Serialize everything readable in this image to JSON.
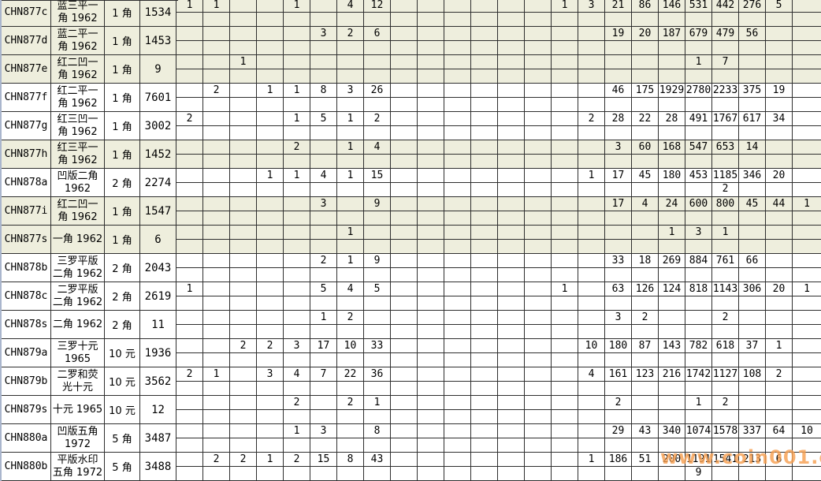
{
  "watermark": "www.coin001.com",
  "grid": {
    "num_columns": 24
  },
  "rows": [
    {
      "code": "CHN877c",
      "desc": "蓝三平一\n角 1962",
      "denom": "1 角",
      "count": "1534",
      "bg": "beige",
      "cells": {
        "1": "1",
        "2": "1",
        "5": "1",
        "7": "4",
        "8": "12",
        "15": "1",
        "16": "3",
        "17": "21",
        "18": "86",
        "19": "146",
        "20": "531",
        "21": "442",
        "22": "276",
        "23": "5"
      },
      "cells2": {}
    },
    {
      "code": "CHN877d",
      "desc": "蓝二平一\n角 1962",
      "denom": "1 角",
      "count": "1453",
      "bg": "beige",
      "cells": {
        "6": "3",
        "7": "2",
        "8": "6",
        "17": "19",
        "18": "20",
        "19": "187",
        "20": "679",
        "21": "479",
        "22": "56"
      },
      "cells2": {}
    },
    {
      "code": "CHN877e",
      "desc": "红二凹一\n角 1962",
      "denom": "1 角",
      "count": "9",
      "bg": "beige",
      "cells": {
        "3": "1",
        "20": "1",
        "21": "7"
      },
      "cells2": {}
    },
    {
      "code": "CHN877f",
      "desc": "红二平一\n角 1962",
      "denom": "1 角",
      "count": "7601",
      "bg": "white",
      "cells": {
        "2": "2",
        "4": "1",
        "5": "1",
        "6": "8",
        "7": "3",
        "8": "26",
        "17": "46",
        "18": "175",
        "19": "1929",
        "20": "2780",
        "21": "2233",
        "22": "375",
        "23": "19"
      },
      "cells2": {}
    },
    {
      "code": "CHN877g",
      "desc": "红三凹一\n角 1962",
      "denom": "1 角",
      "count": "3002",
      "bg": "white",
      "cells": {
        "1": "2",
        "5": "1",
        "6": "5",
        "7": "1",
        "8": "2",
        "16": "2",
        "17": "28",
        "18": "22",
        "19": "28",
        "20": "491",
        "21": "1767",
        "22": "617",
        "23": "34"
      },
      "cells2": {}
    },
    {
      "code": "CHN877h",
      "desc": "红三平一\n角 1962",
      "denom": "1 角",
      "count": "1452",
      "bg": "beige",
      "cells": {
        "5": "2",
        "7": "1",
        "8": "4",
        "17": "3",
        "18": "60",
        "19": "168",
        "20": "547",
        "21": "653",
        "22": "14"
      },
      "cells2": {}
    },
    {
      "code": "CHN878a",
      "desc": "凹版二角\n1962",
      "denom": "2 角",
      "count": "2274",
      "bg": "white",
      "cells": {
        "4": "1",
        "5": "1",
        "6": "4",
        "7": "1",
        "8": "15",
        "16": "1",
        "17": "17",
        "18": "45",
        "19": "180",
        "20": "453",
        "21": "1185",
        "22": "346",
        "23": "20"
      },
      "cells2": {
        "21": "2"
      }
    },
    {
      "code": "CHN877i",
      "desc": "红二凹一\n角 1962",
      "denom": "1 角",
      "count": "1547",
      "bg": "beige",
      "cells": {
        "6": "3",
        "8": "9",
        "17": "17",
        "18": "4",
        "19": "24",
        "20": "600",
        "21": "800",
        "22": "45",
        "23": "44",
        "24": "1"
      },
      "cells2": {}
    },
    {
      "code": "CHN877s",
      "desc": "一角 1962",
      "denom": "1 角",
      "count": "6",
      "bg": "beige",
      "cells": {
        "7": "1",
        "19": "1",
        "20": "3",
        "21": "1"
      },
      "cells2": {}
    },
    {
      "code": "CHN878b",
      "desc": "三罗平版\n二角 1962",
      "denom": "2 角",
      "count": "2043",
      "bg": "white",
      "cells": {
        "6": "2",
        "7": "1",
        "8": "9",
        "17": "33",
        "18": "18",
        "19": "269",
        "20": "884",
        "21": "761",
        "22": "66"
      },
      "cells2": {}
    },
    {
      "code": "CHN878c",
      "desc": "二罗平版\n二角 1962",
      "denom": "2 角",
      "count": "2619",
      "bg": "white",
      "cells": {
        "1": "1",
        "6": "5",
        "7": "4",
        "8": "5",
        "15": "1",
        "17": "63",
        "18": "126",
        "19": "124",
        "20": "818",
        "21": "1143",
        "22": "306",
        "23": "20",
        "24": "1"
      },
      "cells2": {}
    },
    {
      "code": "CHN878s",
      "desc": "二角 1962",
      "denom": "2 角",
      "count": "11",
      "bg": "white",
      "cells": {
        "6": "1",
        "7": "2",
        "17": "3",
        "18": "2",
        "21": "2"
      },
      "cells2": {}
    },
    {
      "code": "CHN879a",
      "desc": "三罗十元\n1965",
      "denom": "10 元",
      "count": "1936",
      "bg": "white",
      "cells": {
        "3": "2",
        "4": "2",
        "5": "3",
        "6": "17",
        "7": "10",
        "8": "33",
        "16": "10",
        "17": "180",
        "18": "87",
        "19": "143",
        "20": "782",
        "21": "618",
        "22": "37",
        "23": "1"
      },
      "cells2": {}
    },
    {
      "code": "CHN879b",
      "desc": "二罗和荧\n光十元",
      "denom": "10 元",
      "count": "3562",
      "bg": "white",
      "cells": {
        "1": "2",
        "2": "1",
        "4": "3",
        "5": "4",
        "6": "7",
        "7": "22",
        "8": "36",
        "16": "4",
        "17": "161",
        "18": "123",
        "19": "216",
        "20": "1742",
        "21": "1127",
        "22": "108",
        "23": "2"
      },
      "cells2": {}
    },
    {
      "code": "CHN879s",
      "desc": "十元 1965",
      "denom": "10 元",
      "count": "12",
      "bg": "white",
      "cells": {
        "5": "2",
        "7": "2",
        "8": "1",
        "17": "2",
        "20": "1",
        "21": "2"
      },
      "cells2": {}
    },
    {
      "code": "CHN880a",
      "desc": "凹版五角\n1972",
      "denom": "5 角",
      "count": "3487",
      "bg": "white",
      "cells": {
        "5": "1",
        "6": "3",
        "8": "8",
        "17": "29",
        "18": "43",
        "19": "340",
        "20": "1074",
        "21": "1578",
        "22": "337",
        "23": "64",
        "24": "10"
      },
      "cells2": {}
    },
    {
      "code": "CHN880b",
      "desc": "平版水印\n五角 1972",
      "denom": "5 角",
      "count": "3488",
      "bg": "white",
      "cells": {
        "2": "2",
        "3": "2",
        "4": "1",
        "5": "2",
        "6": "15",
        "7": "8",
        "8": "43",
        "16": "1",
        "17": "186",
        "18": "51",
        "19": "200",
        "20": "1191",
        "21": "1541",
        "22": "213",
        "23": "6"
      },
      "cells2": {
        "20": "9"
      }
    }
  ]
}
